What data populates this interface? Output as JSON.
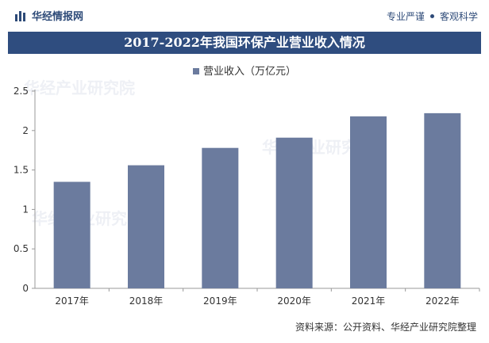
{
  "header": {
    "brand": "华经情报网",
    "tag1": "专业严谨",
    "tag2": "客观科学"
  },
  "title": "2017-2022年我国环保产业营业收入情况",
  "source": "资料来源：公开资料、华经产业研究院整理",
  "watermark": "华经产业研究院",
  "colors": {
    "bar": "#6b7b9e",
    "title_bg": "#2f4d7f",
    "brand": "#2d4a78"
  },
  "chart_data": {
    "type": "bar",
    "categories": [
      "2017年",
      "2018年",
      "2019年",
      "2020年",
      "2021年",
      "2022年"
    ],
    "series": [
      {
        "name": "营业收入（万亿元）",
        "values": [
          1.35,
          1.56,
          1.78,
          1.91,
          2.18,
          2.22
        ]
      }
    ],
    "y_ticks": [
      "0",
      "0.5",
      "1",
      "1.5",
      "2",
      "2.5"
    ],
    "ylim": [
      0,
      2.5
    ],
    "legend_position": "top-center",
    "grid": false
  }
}
